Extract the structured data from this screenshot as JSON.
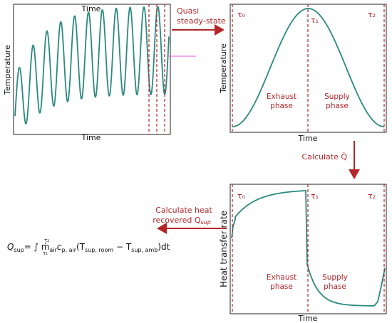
{
  "panel_left": {
    "xlabel": "Time",
    "ylabel": "Temperature"
  },
  "panel_right_top": {
    "xlabel": "Time",
    "ylabel": "Temperature",
    "tau0": "τ₀",
    "tau1": "τ₁",
    "tau2": "τ₂",
    "exhaust_line1": "Exhaust",
    "exhaust_line2": "phase",
    "supply_line1": "Supply",
    "supply_line2": "phase"
  },
  "panel_right_bottom": {
    "xlabel": "Time",
    "ylabel": "Heat transfer rate",
    "tau0": "τ₀",
    "tau1": "τ₁",
    "tau2": "τ₂",
    "exhaust_line1": "Exhaust",
    "exhaust_line2": "phase",
    "supply_line1": "Supply",
    "supply_line2": "phase"
  },
  "arrows": {
    "quasi_line1": "Quasi",
    "quasi_line2": "steady-state",
    "calculate_q": "Calculate Q̇",
    "recovered_line1": "Calculate heat",
    "recovered_line2": "recovered Q",
    "recovered_sub": "sup"
  },
  "equation": {
    "lhs": "Q",
    "lhs_sub": "sup",
    "body": "= ∫ ṁ",
    "upper": "τ₂",
    "lower": "τ₁",
    "mdot_sub": "air",
    "c": "c",
    "c_sub": "p, air",
    "paren_open": "(T",
    "t1_sub": "sup, room",
    "minus": " − T",
    "t2_sub": "sup, amb",
    "tail": ")dt"
  },
  "colors": {
    "curve": "#2a8a7e",
    "accent_red": "#b3262a",
    "highlight": "#e35bd6"
  }
}
